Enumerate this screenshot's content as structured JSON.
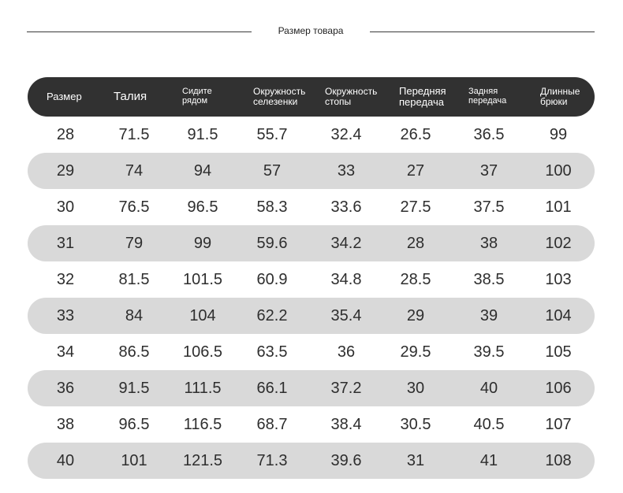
{
  "title": "Размер товара",
  "headers": [
    "Размер",
    "Талия",
    "Сидите\nрядом",
    "Окружность\nселезенки",
    "Окружность\nстопы",
    "Передняя\nпередача",
    "Задняя\nпередача",
    "Длинные\nбрюки"
  ],
  "rows": [
    [
      "28",
      "71.5",
      "91.5",
      "55.7",
      "32.4",
      "26.5",
      "36.5",
      "99"
    ],
    [
      "29",
      "74",
      "94",
      "57",
      "33",
      "27",
      "37",
      "100"
    ],
    [
      "30",
      "76.5",
      "96.5",
      "58.3",
      "33.6",
      "27.5",
      "37.5",
      "101"
    ],
    [
      "31",
      "79",
      "99",
      "59.6",
      "34.2",
      "28",
      "38",
      "102"
    ],
    [
      "32",
      "81.5",
      "101.5",
      "60.9",
      "34.8",
      "28.5",
      "38.5",
      "103"
    ],
    [
      "33",
      "84",
      "104",
      "62.2",
      "35.4",
      "29",
      "39",
      "104"
    ],
    [
      "34",
      "86.5",
      "106.5",
      "63.5",
      "36",
      "29.5",
      "39.5",
      "105"
    ],
    [
      "36",
      "91.5",
      "111.5",
      "66.1",
      "37.2",
      "30",
      "40",
      "106"
    ],
    [
      "38",
      "96.5",
      "116.5",
      "68.7",
      "38.4",
      "30.5",
      "40.5",
      "107"
    ],
    [
      "40",
      "101",
      "121.5",
      "71.3",
      "39.6",
      "31",
      "41",
      "108"
    ]
  ],
  "colors": {
    "header_bg": "#313131",
    "header_text": "#ffffff",
    "stripe": "#d9d9d9",
    "text": "#2e2e2e"
  }
}
